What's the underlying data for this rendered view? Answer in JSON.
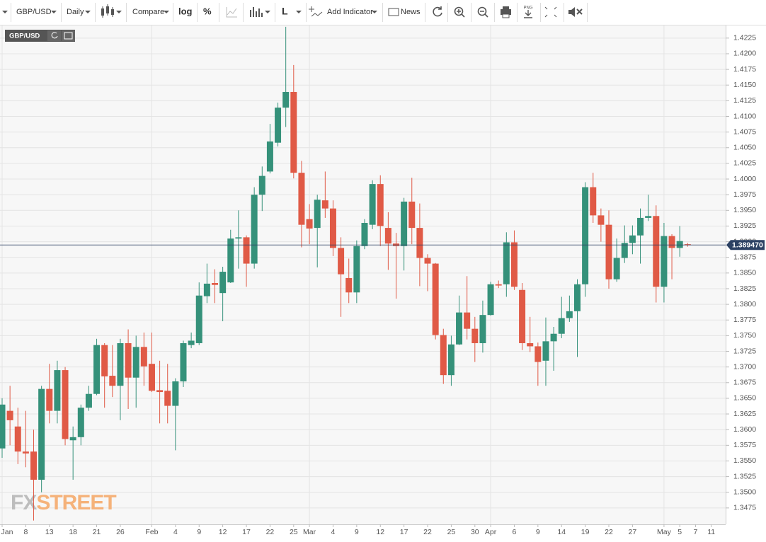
{
  "toolbar": {
    "symbol": "GBP/USD",
    "interval": "Daily",
    "compare": "Compare",
    "log": "log",
    "percent": "%",
    "line": "L",
    "add_indicator": "Add Indicator",
    "news": "News",
    "png": "PNG"
  },
  "watermark": [
    "FX",
    "STREET"
  ],
  "chart_data": {
    "type": "candlestick",
    "title": "GBP/USD",
    "up_color": "#35917a",
    "down_color": "#e05a46",
    "grid": true,
    "categories": [
      "Jan",
      null,
      null,
      "8",
      null,
      null,
      "13",
      null,
      null,
      "18",
      null,
      null,
      "21",
      null,
      null,
      "26",
      null,
      null,
      null,
      "Feb",
      null,
      null,
      "4",
      null,
      null,
      "9",
      null,
      null,
      "12",
      null,
      null,
      "17",
      null,
      null,
      "22",
      null,
      null,
      "25",
      null,
      "Mar",
      null,
      null,
      "4",
      null,
      null,
      "9",
      null,
      null,
      "12",
      null,
      null,
      "17",
      null,
      null,
      "22",
      null,
      null,
      "25",
      null,
      null,
      "30",
      null,
      "Apr",
      null,
      null,
      "6",
      null,
      null,
      "9",
      null,
      null,
      "14",
      null,
      null,
      "19",
      null,
      null,
      "22",
      null,
      null,
      "27",
      null,
      null,
      null,
      "May",
      null,
      "5",
      null,
      "7",
      null,
      "11"
    ],
    "open": [
      1.357,
      1.363,
      1.3605,
      1.3565,
      1.3565,
      1.352,
      1.3665,
      1.363,
      1.3695,
      1.3583,
      1.3588,
      1.3635,
      1.3657,
      1.3735,
      1.3686,
      1.367,
      1.3738,
      1.3683,
      1.3732,
      1.3705,
      1.3663,
      1.3662,
      1.3638,
      1.3677,
      1.3735,
      1.3738,
      1.3813,
      1.3834,
      1.3818,
      1.3835,
      1.3905,
      1.3907,
      1.3865,
      1.3975,
      1.4012,
      1.4058,
      1.4114,
      1.4139,
      1.401,
      1.3936,
      1.3922,
      1.3966,
      1.3953,
      1.389,
      1.3842,
      1.3819,
      1.3893,
      1.3927,
      1.3992,
      1.3922,
      1.3897,
      1.3893,
      1.3964,
      1.3922,
      1.3874,
      1.3865,
      1.3751,
      1.3687,
      1.3736,
      1.3787,
      1.3761,
      1.3738,
      1.3783,
      1.3832,
      1.3832,
      1.3899,
      1.3823,
      1.3738,
      1.3733,
      1.371,
      1.3741,
      1.3753,
      1.3778,
      1.3789,
      1.3832,
      1.3987,
      1.3942,
      1.3927,
      1.384,
      1.3874,
      1.3898,
      1.391,
      1.3938,
      1.3941,
      1.3828,
      1.3909,
      1.389,
      1.3896,
      null,
      null,
      null
    ],
    "high": [
      1.365,
      1.367,
      1.3635,
      1.363,
      1.36,
      1.367,
      1.3705,
      1.371,
      1.37,
      1.3605,
      1.364,
      1.367,
      1.3745,
      1.3738,
      1.3735,
      1.3745,
      1.376,
      1.375,
      1.3755,
      1.3755,
      1.371,
      1.3705,
      1.3682,
      1.3742,
      1.3755,
      1.3835,
      1.3865,
      1.3856,
      1.386,
      1.3919,
      1.395,
      1.391,
      1.3987,
      1.402,
      1.4088,
      1.4122,
      1.4243,
      1.4182,
      1.4029,
      1.396,
      1.3975,
      1.4012,
      1.3966,
      1.3907,
      1.3873,
      1.3902,
      1.3936,
      1.3998,
      1.4006,
      1.3947,
      1.3914,
      1.397,
      1.4002,
      1.3961,
      1.388,
      1.3866,
      1.3761,
      1.375,
      1.3814,
      1.3845,
      1.378,
      1.3806,
      1.3836,
      1.3838,
      1.3915,
      1.3918,
      1.3834,
      1.378,
      1.3739,
      1.3779,
      1.3764,
      1.3812,
      1.3814,
      1.384,
      1.3995,
      1.401,
      1.3953,
      1.395,
      1.3905,
      1.3926,
      1.3926,
      1.3953,
      1.3975,
      1.3958,
      1.393,
      1.3912,
      1.3925,
      1.3898,
      null,
      null,
      null
    ],
    "low": [
      1.3555,
      1.3575,
      1.3545,
      1.354,
      1.3455,
      1.35,
      1.361,
      1.361,
      1.3575,
      1.352,
      1.3575,
      1.363,
      1.3655,
      1.3635,
      1.3652,
      1.3615,
      1.3633,
      1.3635,
      1.367,
      1.366,
      1.361,
      1.361,
      1.3567,
      1.3668,
      1.373,
      1.3735,
      1.3802,
      1.3802,
      1.3773,
      1.3834,
      1.3857,
      1.3828,
      1.3857,
      1.3949,
      1.4009,
      1.4052,
      1.4083,
      1.4001,
      1.3891,
      1.3896,
      1.3859,
      1.3938,
      1.3877,
      1.378,
      1.3802,
      1.3802,
      1.3888,
      1.392,
      1.3893,
      1.3855,
      1.3809,
      1.3854,
      1.3896,
      1.3829,
      1.3821,
      1.3744,
      1.3673,
      1.367,
      1.3735,
      1.3744,
      1.3708,
      1.3723,
      1.3782,
      1.3826,
      1.3812,
      1.3823,
      1.3727,
      1.3724,
      1.367,
      1.367,
      1.3694,
      1.3746,
      1.3772,
      1.3716,
      1.3812,
      1.393,
      1.39,
      1.3825,
      1.3836,
      1.3866,
      1.388,
      1.3865,
      1.3933,
      1.3803,
      1.3803,
      1.384,
      1.3876,
      1.3892,
      null,
      null,
      null
    ],
    "close": [
      1.364,
      1.3615,
      1.3565,
      1.3562,
      1.352,
      1.3665,
      1.363,
      1.3695,
      1.3585,
      1.3588,
      1.3635,
      1.3657,
      1.3735,
      1.3685,
      1.367,
      1.3738,
      1.3683,
      1.3732,
      1.3701,
      1.3662,
      1.366,
      1.3638,
      1.3677,
      1.3738,
      1.3742,
      1.3814,
      1.3833,
      1.3831,
      1.3852,
      1.3905,
      1.3907,
      1.3865,
      1.3975,
      1.4005,
      1.406,
      1.4114,
      1.4139,
      1.401,
      1.3927,
      1.3921,
      1.3967,
      1.3953,
      1.389,
      1.3848,
      1.3819,
      1.3893,
      1.393,
      1.3992,
      1.3925,
      1.3897,
      1.3893,
      1.3964,
      1.3922,
      1.3874,
      1.3865,
      1.3751,
      1.3687,
      1.3736,
      1.3787,
      1.3761,
      1.3738,
      1.3783,
      1.3832,
      1.383,
      1.3899,
      1.3828,
      1.3738,
      1.3733,
      1.3708,
      1.3741,
      1.3753,
      1.3778,
      1.3789,
      1.3832,
      1.3987,
      1.3942,
      1.3927,
      1.384,
      1.3874,
      1.3898,
      1.391,
      1.3938,
      1.3941,
      1.3828,
      1.3909,
      1.389,
      1.3901,
      1.38947,
      null,
      null,
      null
    ],
    "last_price": {
      "value": 1.38947,
      "label": "1.389470"
    },
    "last_price_color": "#2c4163",
    "ylim": [
      1.345,
      1.4244
    ],
    "yticks": [
      1.3475,
      {
        "value": 1.35,
        "label": "1.3500"
      },
      1.3525,
      {
        "value": 1.355,
        "label": "1.3550"
      },
      1.3575,
      {
        "value": 1.36,
        "label": "1.3600"
      },
      1.3625,
      {
        "value": 1.365,
        "label": "1.3650"
      },
      1.3675,
      {
        "value": 1.37,
        "label": "1.3700"
      },
      1.3725,
      {
        "value": 1.375,
        "label": "1.3750"
      },
      1.3775,
      {
        "value": 1.38,
        "label": "1.3800"
      },
      1.3825,
      {
        "value": 1.385,
        "label": "1.3850"
      },
      1.3875,
      {
        "value": 1.39,
        "label": "1.3900"
      },
      1.3925,
      {
        "value": 1.395,
        "label": "1.3950"
      },
      1.3975,
      {
        "value": 1.4,
        "label": "1.4000"
      },
      1.4025,
      {
        "value": 1.405,
        "label": "1.4050"
      },
      1.4075,
      {
        "value": 1.41,
        "label": "1.4100"
      },
      1.4125,
      {
        "value": 1.415,
        "label": "1.4150"
      },
      1.4175,
      {
        "value": 1.42,
        "label": "1.4200"
      },
      1.4225
    ]
  }
}
